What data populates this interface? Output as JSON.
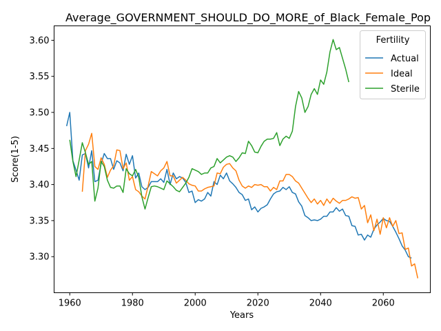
{
  "chart_data": {
    "type": "line",
    "title": "Average_GOVERNMENT_SHOULD_DO_MORE_of_Black_Female_Pop",
    "xlabel": "Years",
    "ylabel": "Score(1-5)",
    "xlim": [
      1955,
      2075
    ],
    "ylim": [
      3.25,
      3.62
    ],
    "x_ticks": [
      1960,
      1980,
      2000,
      2020,
      2040,
      2060
    ],
    "y_ticks": [
      3.3,
      3.35,
      3.4,
      3.45,
      3.5,
      3.55,
      3.6
    ],
    "x_tick_labels": [
      "1960",
      "1980",
      "2000",
      "2020",
      "2040",
      "2060"
    ],
    "y_tick_labels": [
      "3.30",
      "3.35",
      "3.40",
      "3.45",
      "3.50",
      "3.55",
      "3.60"
    ],
    "grid": false,
    "legend": {
      "title": "Fertility",
      "placement": "top-right"
    },
    "series": [
      {
        "name": "Actual",
        "color": "#1f77b4",
        "x_start": 1959,
        "values": [
          3.481,
          3.5,
          3.433,
          3.42,
          3.406,
          3.441,
          3.443,
          3.423,
          3.447,
          3.404,
          3.406,
          3.429,
          3.443,
          3.436,
          3.436,
          3.421,
          3.433,
          3.43,
          3.419,
          3.442,
          3.428,
          3.44,
          3.409,
          3.416,
          3.397,
          3.393,
          3.396,
          3.404,
          3.404,
          3.404,
          3.408,
          3.403,
          3.421,
          3.4,
          3.416,
          3.408,
          3.411,
          3.409,
          3.403,
          3.389,
          3.391,
          3.375,
          3.379,
          3.377,
          3.38,
          3.389,
          3.384,
          3.404,
          3.4,
          3.413,
          3.408,
          3.416,
          3.405,
          3.401,
          3.396,
          3.389,
          3.386,
          3.378,
          3.38,
          3.365,
          3.369,
          3.362,
          3.367,
          3.369,
          3.372,
          3.38,
          3.387,
          3.39,
          3.391,
          3.396,
          3.393,
          3.397,
          3.389,
          3.387,
          3.376,
          3.37,
          3.357,
          3.354,
          3.35,
          3.351,
          3.35,
          3.352,
          3.356,
          3.356,
          3.362,
          3.362,
          3.368,
          3.363,
          3.366,
          3.357,
          3.356,
          3.343,
          3.342,
          3.33,
          3.331,
          3.323,
          3.33,
          3.327,
          3.338,
          3.344,
          3.348,
          3.353,
          3.35,
          3.349,
          3.342,
          3.334,
          3.325,
          3.315,
          3.309,
          3.3,
          3.298
        ]
      },
      {
        "name": "Ideal",
        "color": "#ff7f0e",
        "x_start": 1959,
        "values": [
          null,
          null,
          null,
          null,
          null,
          3.39,
          3.447,
          3.456,
          3.471,
          3.425,
          3.421,
          3.437,
          3.428,
          3.41,
          3.42,
          3.426,
          3.448,
          3.447,
          3.422,
          3.43,
          3.406,
          3.411,
          3.393,
          3.39,
          3.384,
          3.38,
          3.398,
          3.418,
          3.415,
          3.412,
          3.419,
          3.423,
          3.432,
          3.412,
          3.412,
          3.402,
          3.406,
          3.41,
          3.406,
          3.401,
          3.399,
          3.398,
          3.391,
          3.391,
          3.394,
          3.396,
          3.397,
          3.398,
          3.416,
          3.415,
          3.424,
          3.428,
          3.429,
          3.423,
          3.419,
          3.406,
          3.398,
          3.395,
          3.398,
          3.396,
          3.4,
          3.399,
          3.4,
          3.397,
          3.397,
          3.391,
          3.396,
          3.393,
          3.405,
          3.405,
          3.414,
          3.414,
          3.411,
          3.405,
          3.402,
          3.395,
          3.388,
          3.381,
          3.375,
          3.38,
          3.373,
          3.378,
          3.371,
          3.38,
          3.374,
          3.381,
          3.377,
          3.374,
          3.378,
          3.378,
          3.38,
          3.383,
          3.381,
          3.382,
          3.366,
          3.371,
          3.347,
          3.358,
          3.336,
          3.352,
          3.331,
          3.354,
          3.34,
          3.354,
          3.342,
          3.35,
          3.332,
          3.333,
          3.31,
          3.312,
          3.287,
          3.29,
          3.27
        ]
      },
      {
        "name": "Sterile",
        "color": "#2ca02c",
        "x_start": 1959,
        "values": [
          null,
          3.462,
          3.432,
          3.411,
          3.434,
          3.458,
          3.444,
          3.428,
          3.432,
          3.377,
          3.395,
          3.432,
          3.425,
          3.406,
          3.396,
          3.395,
          3.398,
          3.398,
          3.389,
          3.422,
          3.415,
          3.412,
          3.421,
          3.41,
          3.383,
          3.366,
          3.382,
          3.397,
          3.398,
          3.397,
          3.395,
          3.393,
          3.405,
          3.401,
          3.397,
          3.392,
          3.39,
          3.396,
          3.402,
          3.41,
          3.422,
          3.42,
          3.418,
          3.414,
          3.416,
          3.416,
          3.423,
          3.425,
          3.436,
          3.43,
          3.434,
          3.438,
          3.44,
          3.438,
          3.432,
          3.437,
          3.444,
          3.443,
          3.46,
          3.454,
          3.445,
          3.444,
          3.453,
          3.46,
          3.463,
          3.463,
          3.464,
          3.472,
          3.454,
          3.463,
          3.467,
          3.464,
          3.474,
          3.508,
          3.529,
          3.52,
          3.5,
          3.508,
          3.525,
          3.533,
          3.525,
          3.545,
          3.539,
          3.556,
          3.584,
          3.601,
          3.587,
          3.59,
          3.575,
          3.56,
          3.542
        ]
      }
    ]
  }
}
